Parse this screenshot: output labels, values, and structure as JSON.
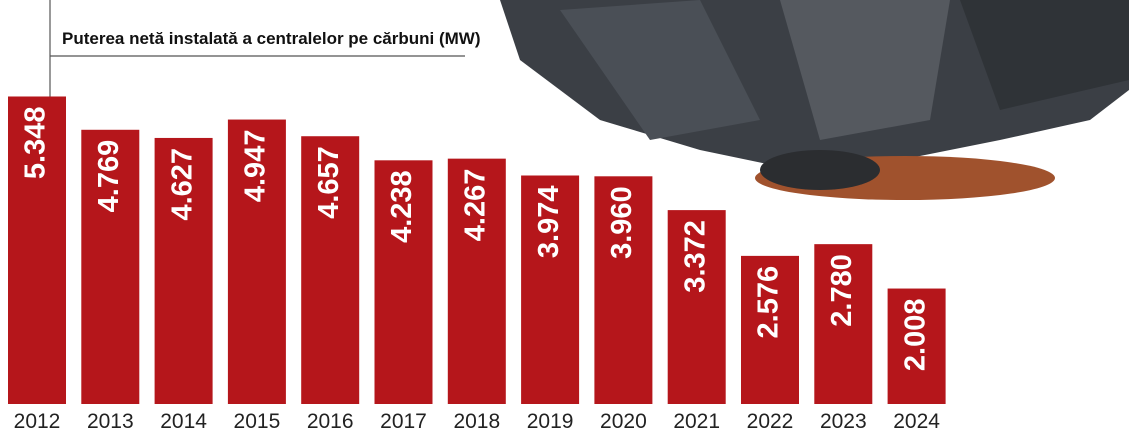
{
  "chart_data": {
    "type": "bar",
    "title": "Puterea netă instalată a centralelor pe cărbuni (MW)",
    "categories": [
      "2012",
      "2013",
      "2014",
      "2015",
      "2016",
      "2017",
      "2018",
      "2019",
      "2020",
      "2021",
      "2022",
      "2023",
      "2024"
    ],
    "values": [
      5348,
      4769,
      4627,
      4947,
      4657,
      4238,
      4267,
      3974,
      3960,
      3372,
      2576,
      2780,
      2008
    ],
    "value_labels": [
      "5.348",
      "4.769",
      "4.627",
      "4.947",
      "4.657",
      "4.238",
      "4.267",
      "3.974",
      "3.960",
      "3.372",
      "2.576",
      "2.780",
      "2.008"
    ],
    "color": "#b5161b"
  }
}
